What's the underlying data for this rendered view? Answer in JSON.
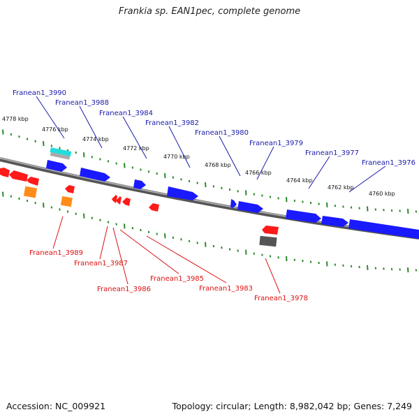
{
  "title": "Frankia sp. EAN1pec, complete genome",
  "footer": {
    "accession": "Accession: NC_009921",
    "summary": "Topology: circular; Length: 8,982,042 bp; Genes: 7,249"
  },
  "colors": {
    "forward_gene": "#1a1aff",
    "reverse_gene": "#ff1a1a",
    "rna_gene": "#ff8c1a",
    "other_feature": "#22dddd",
    "pseudo_feature": "#555555",
    "backbone": "#888888",
    "tick": "#2a8a2a",
    "forward_label": "#1a1aaa",
    "reverse_label": "#dd1111"
  },
  "scale_labels": [
    "4778 kbp",
    "4776 kbp",
    "4774 kbp",
    "4772 kbp",
    "4770 kbp",
    "4768 kbp",
    "4766 kbp",
    "4764 kbp",
    "4762 kbp",
    "4760 kbp"
  ],
  "forward_labels": [
    "Franean1_3990",
    "Franean1_3988",
    "Franean1_3984",
    "Franean1_3982",
    "Franean1_3980",
    "Franean1_3979",
    "Franean1_3977",
    "Franean1_3976"
  ],
  "reverse_labels": [
    "Franean1_3989",
    "Franean1_3987",
    "Franean1_3986",
    "Franean1_3985",
    "Franean1_3983",
    "Franean1_3978"
  ]
}
